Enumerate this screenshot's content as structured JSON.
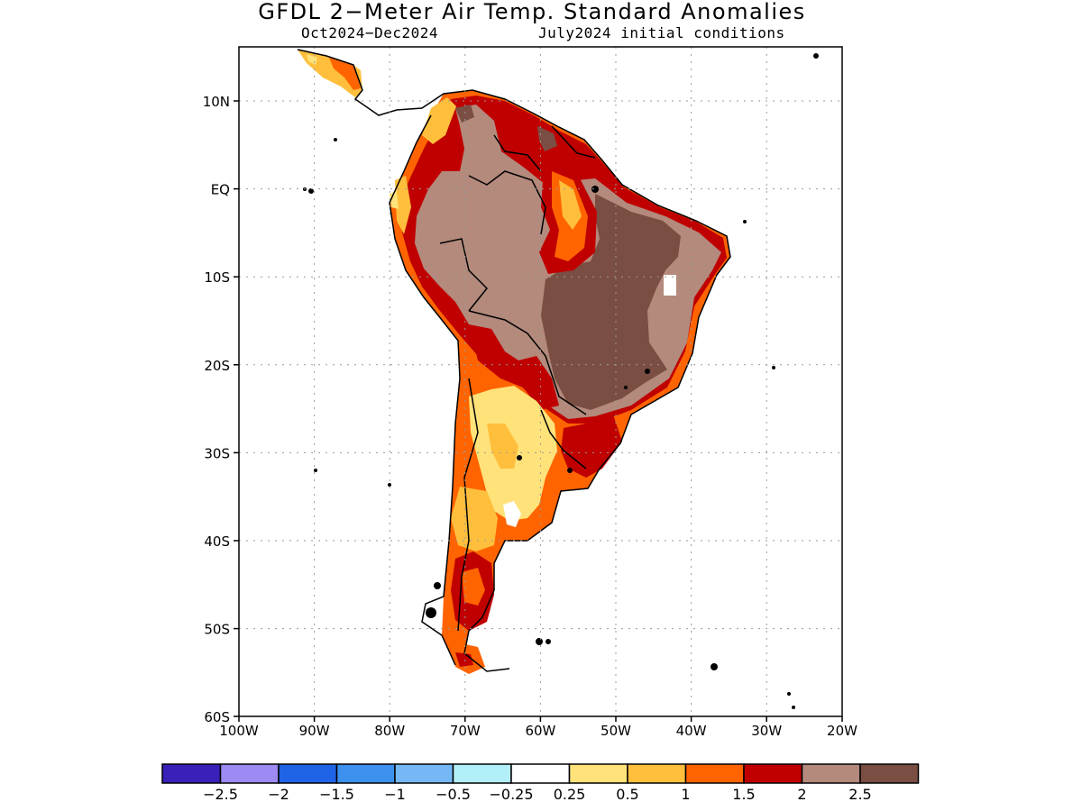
{
  "title": "GFDL 2−Meter Air Temp. Standard Anomalies",
  "subtitle_left": "Oct2024−Dec2024",
  "subtitle_right": "July2024 initial conditions",
  "axes": {
    "lat_labels": [
      "10N",
      "EQ",
      "10S",
      "20S",
      "30S",
      "40S",
      "50S",
      "60S"
    ],
    "lon_labels": [
      "100W",
      "90W",
      "80W",
      "70W",
      "60W",
      "50W",
      "40W",
      "30W",
      "20W"
    ]
  },
  "colorbar": {
    "colors": [
      "#3a20b8",
      "#9d8af2",
      "#1f63e6",
      "#3c91ef",
      "#76b8f6",
      "#b2eff8",
      "#ffffff",
      "#ffe27a",
      "#ffbf3c",
      "#ff6400",
      "#c00000",
      "#b38a7c",
      "#7a4e43"
    ],
    "labels": [
      "−2.5",
      "−2",
      "−1.5",
      "−1",
      "−0.5",
      "−0.25",
      "0.25",
      "0.5",
      "1",
      "1.5",
      "2",
      "2.5"
    ]
  },
  "legend_semantics": {
    "field": "2-meter air temperature standard anomaly",
    "note": "Positive anomalies across most of South America; strongest (>2.5) over central Brazil"
  }
}
